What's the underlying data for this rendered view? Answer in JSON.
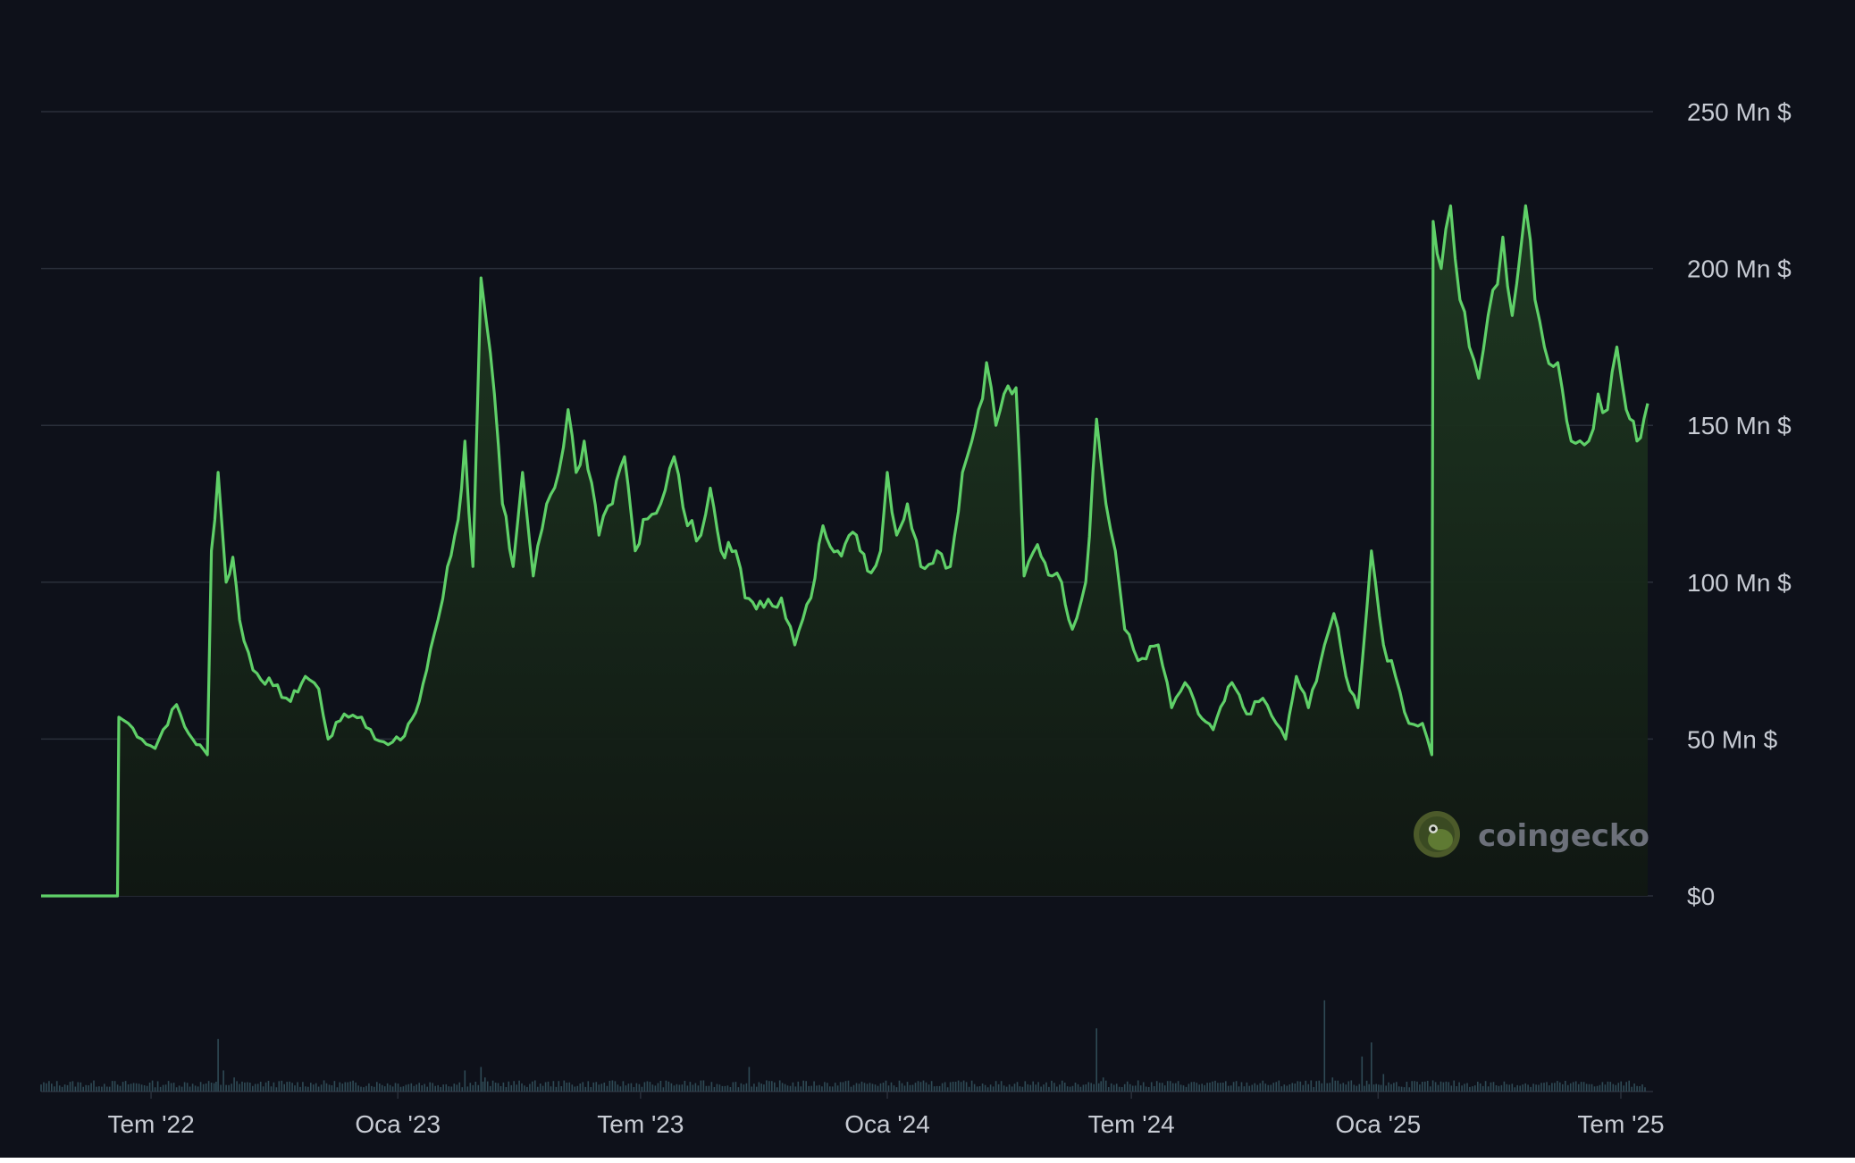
{
  "chart_data": {
    "type": "area",
    "title": "",
    "xlabel": "",
    "ylabel": "",
    "y_unit_suffix": " Mn $",
    "ylim": [
      0,
      250
    ],
    "y_ticks": [
      {
        "value": 0,
        "label": "$0"
      },
      {
        "value": 50,
        "label": "50 Mn $"
      },
      {
        "value": 100,
        "label": "100 Mn $"
      },
      {
        "value": 150,
        "label": "150 Mn $"
      },
      {
        "value": 200,
        "label": "200 Mn $"
      },
      {
        "value": 250,
        "label": "250 Mn $"
      }
    ],
    "xlim": [
      "2022-04-10",
      "2025-07-25"
    ],
    "x_ticks": [
      {
        "date": "2022-07-01",
        "label": "Tem '22"
      },
      {
        "date": "2023-01-01",
        "label": "Oca '23"
      },
      {
        "date": "2023-07-01",
        "label": "Tem '23"
      },
      {
        "date": "2024-01-01",
        "label": "Oca '24"
      },
      {
        "date": "2024-07-01",
        "label": "Tem '24"
      },
      {
        "date": "2025-01-01",
        "label": "Oca '25"
      },
      {
        "date": "2025-07-01",
        "label": "Tem '25"
      }
    ],
    "grid": true,
    "legend": "none",
    "colors": {
      "line": "#5fd068",
      "fill_top": "#1f3a22",
      "fill_bottom": "#101712",
      "grid": "#2a2f3a",
      "volume": "#2f4a55",
      "background": "#0e111a"
    },
    "series": [
      {
        "points": [
          [
            "2022-04-10",
            0
          ],
          [
            "2022-05-08",
            0
          ],
          [
            "2022-06-06",
            0
          ],
          [
            "2022-06-07",
            57
          ],
          [
            "2022-06-14",
            55
          ],
          [
            "2022-06-24",
            50
          ],
          [
            "2022-07-04",
            47
          ],
          [
            "2022-07-10",
            53
          ],
          [
            "2022-07-20",
            61
          ],
          [
            "2022-07-26",
            54
          ],
          [
            "2022-08-01",
            50
          ],
          [
            "2022-08-12",
            45
          ],
          [
            "2022-08-15",
            110
          ],
          [
            "2022-08-20",
            135
          ],
          [
            "2022-08-26",
            100
          ],
          [
            "2022-08-31",
            108
          ],
          [
            "2022-09-05",
            88
          ],
          [
            "2022-09-15",
            72
          ],
          [
            "2022-09-30",
            67
          ],
          [
            "2022-10-13",
            62
          ],
          [
            "2022-10-24",
            70
          ],
          [
            "2022-11-03",
            66
          ],
          [
            "2022-11-10",
            50
          ],
          [
            "2022-11-22",
            58
          ],
          [
            "2022-12-05",
            57
          ],
          [
            "2022-12-15",
            50
          ],
          [
            "2022-12-28",
            49
          ],
          [
            "2023-01-06",
            51
          ],
          [
            "2023-01-17",
            62
          ],
          [
            "2023-01-31",
            88
          ],
          [
            "2023-02-07",
            105
          ],
          [
            "2023-02-15",
            120
          ],
          [
            "2023-02-20",
            145
          ],
          [
            "2023-02-26",
            105
          ],
          [
            "2023-03-04",
            197
          ],
          [
            "2023-03-08",
            183
          ],
          [
            "2023-03-14",
            160
          ],
          [
            "2023-03-20",
            125
          ],
          [
            "2023-03-28",
            105
          ],
          [
            "2023-04-04",
            135
          ],
          [
            "2023-04-12",
            102
          ],
          [
            "2023-04-22",
            125
          ],
          [
            "2023-05-01",
            135
          ],
          [
            "2023-05-08",
            155
          ],
          [
            "2023-05-14",
            135
          ],
          [
            "2023-05-20",
            145
          ],
          [
            "2023-05-31",
            115
          ],
          [
            "2023-06-10",
            125
          ],
          [
            "2023-06-19",
            140
          ],
          [
            "2023-06-27",
            110
          ],
          [
            "2023-07-03",
            120
          ],
          [
            "2023-07-16",
            125
          ],
          [
            "2023-07-26",
            140
          ],
          [
            "2023-08-05",
            118
          ],
          [
            "2023-08-15",
            115
          ],
          [
            "2023-08-22",
            130
          ],
          [
            "2023-08-30",
            110
          ],
          [
            "2023-09-10",
            110
          ],
          [
            "2023-09-17",
            95
          ],
          [
            "2023-10-01",
            92
          ],
          [
            "2023-10-14",
            95
          ],
          [
            "2023-10-24",
            80
          ],
          [
            "2023-11-05",
            95
          ],
          [
            "2023-11-14",
            118
          ],
          [
            "2023-11-25",
            110
          ],
          [
            "2023-12-09",
            115
          ],
          [
            "2023-12-20",
            103
          ],
          [
            "2023-12-27",
            110
          ],
          [
            "2024-01-01",
            135
          ],
          [
            "2024-01-08",
            115
          ],
          [
            "2024-01-16",
            125
          ],
          [
            "2024-01-26",
            105
          ],
          [
            "2024-02-07",
            110
          ],
          [
            "2024-02-17",
            105
          ],
          [
            "2024-02-26",
            135
          ],
          [
            "2024-03-04",
            145
          ],
          [
            "2024-03-09",
            155
          ],
          [
            "2024-03-15",
            170
          ],
          [
            "2024-03-22",
            150
          ],
          [
            "2024-03-28",
            160
          ],
          [
            "2024-04-06",
            162
          ],
          [
            "2024-04-12",
            102
          ],
          [
            "2024-04-22",
            112
          ],
          [
            "2024-05-03",
            102
          ],
          [
            "2024-05-10",
            100
          ],
          [
            "2024-05-18",
            85
          ],
          [
            "2024-05-28",
            100
          ],
          [
            "2024-06-05",
            152
          ],
          [
            "2024-06-12",
            125
          ],
          [
            "2024-06-19",
            110
          ],
          [
            "2024-06-26",
            85
          ],
          [
            "2024-07-06",
            75
          ],
          [
            "2024-07-21",
            80
          ],
          [
            "2024-07-31",
            60
          ],
          [
            "2024-08-10",
            68
          ],
          [
            "2024-08-20",
            58
          ],
          [
            "2024-08-31",
            53
          ],
          [
            "2024-09-14",
            68
          ],
          [
            "2024-09-25",
            58
          ],
          [
            "2024-10-07",
            63
          ],
          [
            "2024-10-17",
            55
          ],
          [
            "2024-10-24",
            50
          ],
          [
            "2024-11-01",
            70
          ],
          [
            "2024-11-10",
            60
          ],
          [
            "2024-11-22",
            80
          ],
          [
            "2024-11-29",
            90
          ],
          [
            "2024-12-08",
            70
          ],
          [
            "2024-12-17",
            60
          ],
          [
            "2024-12-27",
            110
          ],
          [
            "2025-01-05",
            80
          ],
          [
            "2025-01-14",
            70
          ],
          [
            "2025-01-24",
            55
          ],
          [
            "2025-02-03",
            55
          ],
          [
            "2025-02-10",
            45
          ],
          [
            "2025-02-11",
            215
          ],
          [
            "2025-02-17",
            200
          ],
          [
            "2025-02-24",
            220
          ],
          [
            "2025-03-03",
            190
          ],
          [
            "2025-03-10",
            175
          ],
          [
            "2025-03-17",
            165
          ],
          [
            "2025-03-24",
            185
          ],
          [
            "2025-03-31",
            195
          ],
          [
            "2025-04-04",
            210
          ],
          [
            "2025-04-11",
            185
          ],
          [
            "2025-04-21",
            220
          ],
          [
            "2025-04-28",
            190
          ],
          [
            "2025-05-05",
            175
          ],
          [
            "2025-05-15",
            170
          ],
          [
            "2025-05-25",
            145
          ],
          [
            "2025-06-07",
            145
          ],
          [
            "2025-06-14",
            160
          ],
          [
            "2025-06-21",
            155
          ],
          [
            "2025-06-28",
            175
          ],
          [
            "2025-07-05",
            155
          ],
          [
            "2025-07-13",
            145
          ],
          [
            "2025-07-21",
            157
          ]
        ]
      }
    ],
    "volume_series": [
      [
        "2022-04-10",
        1.0
      ],
      [
        "2022-06-08",
        0.8
      ],
      [
        "2022-08-17",
        1.2
      ],
      [
        "2022-08-20",
        7.5
      ],
      [
        "2022-08-24",
        3.0
      ],
      [
        "2022-09-01",
        2.0
      ],
      [
        "2022-11-01",
        1.2
      ],
      [
        "2023-01-15",
        1.0
      ],
      [
        "2023-02-20",
        3.0
      ],
      [
        "2023-03-04",
        3.5
      ],
      [
        "2023-03-07",
        2.0
      ],
      [
        "2023-05-01",
        1.5
      ],
      [
        "2023-08-01",
        1.0
      ],
      [
        "2023-09-20",
        3.5
      ],
      [
        "2023-10-01",
        1.0
      ],
      [
        "2023-12-01",
        1.5
      ],
      [
        "2024-02-01",
        1.0
      ],
      [
        "2024-04-01",
        1.0
      ],
      [
        "2024-06-05",
        9.0
      ],
      [
        "2024-06-10",
        2.0
      ],
      [
        "2024-08-01",
        1.2
      ],
      [
        "2024-10-01",
        1.2
      ],
      [
        "2024-11-22",
        13.0
      ],
      [
        "2024-11-28",
        2.0
      ],
      [
        "2024-12-20",
        5.0
      ],
      [
        "2024-12-27",
        7.0
      ],
      [
        "2025-01-05",
        2.5
      ],
      [
        "2025-02-01",
        1.0
      ],
      [
        "2025-04-01",
        0.8
      ],
      [
        "2025-07-21",
        0.8
      ]
    ],
    "volume_ylim": [
      0,
      14
    ]
  },
  "watermark": {
    "text": "coingecko",
    "icon": "coingecko-gecko-icon"
  }
}
